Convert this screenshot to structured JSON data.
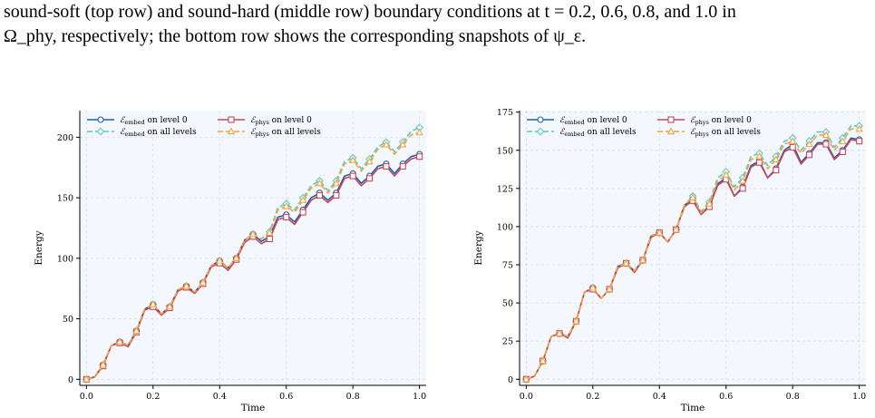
{
  "caption": {
    "line1": "sound-soft (top row) and sound-hard (middle row) boundary conditions at t = 0.2, 0.6, 0.8, and 1.0 in",
    "line2": "Ω_phy, respectively; the bottom row shows the corresponding snapshots of ψ_ε."
  },
  "colors": {
    "embed_level0": "#1f5fa6",
    "embed_all": "#5cc8c0",
    "phys_level0": "#c8465a",
    "phys_all": "#f2a443",
    "panel_bg": "#f4f7fc"
  },
  "chart_data": [
    {
      "type": "line",
      "xlabel": "Time",
      "ylabel": "Energy",
      "xlim": [
        -0.02,
        1.02
      ],
      "ylim": [
        -5,
        222
      ],
      "xticks": [
        "0.0",
        "0.2",
        "0.4",
        "0.6",
        "0.8",
        "1.0"
      ],
      "yticks": [
        "0",
        "50",
        "100",
        "150",
        "200"
      ],
      "grid": true,
      "legend": "top-left",
      "series": [
        {
          "name": "E_embed on level 0",
          "legend_main": "ℰ",
          "legend_sub": "embed",
          "legend_rest": " on level 0",
          "color_key": "embed_level0",
          "marker": "circle",
          "dash": "solid",
          "x": [
            0.0,
            0.025,
            0.05,
            0.075,
            0.1,
            0.125,
            0.15,
            0.175,
            0.2,
            0.225,
            0.25,
            0.275,
            0.3,
            0.325,
            0.35,
            0.375,
            0.4,
            0.425,
            0.45,
            0.475,
            0.5,
            0.525,
            0.55,
            0.575,
            0.6,
            0.625,
            0.65,
            0.675,
            0.7,
            0.725,
            0.75,
            0.775,
            0.8,
            0.825,
            0.85,
            0.875,
            0.9,
            0.925,
            0.95,
            0.975,
            1.0
          ],
          "y": [
            0,
            2,
            12,
            28,
            31,
            28,
            40,
            58,
            62,
            54,
            60,
            74,
            77,
            72,
            80,
            94,
            98,
            92,
            100,
            115,
            120,
            114,
            118,
            134,
            136,
            130,
            140,
            150,
            154,
            148,
            154,
            168,
            170,
            162,
            168,
            176,
            178,
            170,
            178,
            184,
            186
          ]
        },
        {
          "name": "E_embed on all levels",
          "legend_main": "ℰ",
          "legend_sub": "embed",
          "legend_rest": " on all levels",
          "color_key": "embed_all",
          "marker": "diamond",
          "dash": "dashed",
          "x": [
            0.0,
            0.025,
            0.05,
            0.075,
            0.1,
            0.125,
            0.15,
            0.175,
            0.2,
            0.225,
            0.25,
            0.275,
            0.3,
            0.325,
            0.35,
            0.375,
            0.4,
            0.425,
            0.45,
            0.475,
            0.5,
            0.525,
            0.55,
            0.575,
            0.6,
            0.625,
            0.65,
            0.675,
            0.7,
            0.725,
            0.75,
            0.775,
            0.8,
            0.825,
            0.85,
            0.875,
            0.9,
            0.925,
            0.95,
            0.975,
            1.0
          ],
          "y": [
            0,
            2,
            12,
            28,
            31,
            28,
            40,
            58,
            62,
            54,
            60,
            74,
            77,
            72,
            80,
            94,
            98,
            92,
            100,
            115,
            120,
            116,
            122,
            142,
            145,
            140,
            150,
            160,
            164,
            156,
            164,
            180,
            183,
            174,
            182,
            192,
            196,
            188,
            196,
            205,
            208
          ]
        },
        {
          "name": "E_phys on level 0",
          "legend_main": "ℰ",
          "legend_sub": "phys",
          "legend_rest": " on level 0",
          "color_key": "phys_level0",
          "marker": "square",
          "dash": "solid",
          "x": [
            0.0,
            0.025,
            0.05,
            0.075,
            0.1,
            0.125,
            0.15,
            0.175,
            0.2,
            0.225,
            0.25,
            0.275,
            0.3,
            0.325,
            0.35,
            0.375,
            0.4,
            0.425,
            0.45,
            0.475,
            0.5,
            0.525,
            0.55,
            0.575,
            0.6,
            0.625,
            0.65,
            0.675,
            0.7,
            0.725,
            0.75,
            0.775,
            0.8,
            0.825,
            0.85,
            0.875,
            0.9,
            0.925,
            0.95,
            0.975,
            1.0
          ],
          "y": [
            0,
            2,
            11,
            28,
            30,
            27,
            39,
            57,
            60,
            53,
            59,
            73,
            76,
            71,
            79,
            93,
            96,
            90,
            99,
            113,
            118,
            112,
            116,
            132,
            134,
            128,
            138,
            148,
            152,
            146,
            152,
            166,
            168,
            160,
            166,
            174,
            176,
            168,
            176,
            182,
            184
          ]
        },
        {
          "name": "E_phys on all levels",
          "legend_main": "ℰ",
          "legend_sub": "phys",
          "legend_rest": " on all levels",
          "color_key": "phys_all",
          "marker": "triangle",
          "dash": "dashed",
          "x": [
            0.0,
            0.025,
            0.05,
            0.075,
            0.1,
            0.125,
            0.15,
            0.175,
            0.2,
            0.225,
            0.25,
            0.275,
            0.3,
            0.325,
            0.35,
            0.375,
            0.4,
            0.425,
            0.45,
            0.475,
            0.5,
            0.525,
            0.55,
            0.575,
            0.6,
            0.625,
            0.65,
            0.675,
            0.7,
            0.725,
            0.75,
            0.775,
            0.8,
            0.825,
            0.85,
            0.875,
            0.9,
            0.925,
            0.95,
            0.975,
            1.0
          ],
          "y": [
            0,
            2,
            12,
            28,
            31,
            28,
            40,
            58,
            62,
            54,
            60,
            74,
            77,
            72,
            80,
            94,
            98,
            92,
            100,
            115,
            120,
            116,
            121,
            140,
            143,
            138,
            148,
            158,
            162,
            154,
            162,
            178,
            181,
            172,
            180,
            190,
            194,
            186,
            194,
            202,
            204
          ]
        }
      ]
    },
    {
      "type": "line",
      "xlabel": "Time",
      "ylabel": "Energy",
      "xlim": [
        -0.02,
        1.02
      ],
      "ylim": [
        -4,
        176
      ],
      "xticks": [
        "0.0",
        "0.2",
        "0.4",
        "0.6",
        "0.8",
        "1.0"
      ],
      "yticks": [
        "0",
        "25",
        "50",
        "75",
        "100",
        "125",
        "150",
        "175"
      ],
      "grid": true,
      "legend": "top-left",
      "series": [
        {
          "name": "E_embed on level 0",
          "legend_main": "ℰ",
          "legend_sub": "embed",
          "legend_rest": " on level 0",
          "color_key": "embed_level0",
          "marker": "circle",
          "dash": "solid",
          "x": [
            0.0,
            0.025,
            0.05,
            0.075,
            0.1,
            0.125,
            0.15,
            0.175,
            0.2,
            0.225,
            0.25,
            0.275,
            0.3,
            0.325,
            0.35,
            0.375,
            0.4,
            0.425,
            0.45,
            0.475,
            0.5,
            0.525,
            0.55,
            0.575,
            0.6,
            0.625,
            0.65,
            0.675,
            0.7,
            0.725,
            0.75,
            0.775,
            0.8,
            0.825,
            0.85,
            0.875,
            0.9,
            0.925,
            0.95,
            0.975,
            1.0
          ],
          "y": [
            0,
            2,
            12,
            28,
            30,
            28,
            38,
            57,
            60,
            53,
            59,
            74,
            76,
            71,
            78,
            94,
            96,
            90,
            98,
            114,
            118,
            108,
            114,
            128,
            132,
            120,
            126,
            140,
            143,
            132,
            138,
            150,
            154,
            142,
            148,
            155,
            155,
            145,
            150,
            158,
            157
          ]
        },
        {
          "name": "E_embed on all levels",
          "legend_main": "ℰ",
          "legend_sub": "embed",
          "legend_rest": " on all levels",
          "color_key": "embed_all",
          "marker": "diamond",
          "dash": "dashed",
          "x": [
            0.0,
            0.025,
            0.05,
            0.075,
            0.1,
            0.125,
            0.15,
            0.175,
            0.2,
            0.225,
            0.25,
            0.275,
            0.3,
            0.325,
            0.35,
            0.375,
            0.4,
            0.425,
            0.45,
            0.475,
            0.5,
            0.525,
            0.55,
            0.575,
            0.6,
            0.625,
            0.65,
            0.675,
            0.7,
            0.725,
            0.75,
            0.775,
            0.8,
            0.825,
            0.85,
            0.875,
            0.9,
            0.925,
            0.95,
            0.975,
            1.0
          ],
          "y": [
            0,
            2,
            12,
            28,
            30,
            28,
            38,
            57,
            60,
            53,
            59,
            74,
            76,
            71,
            78,
            94,
            96,
            90,
            98,
            114,
            120,
            110,
            116,
            132,
            136,
            126,
            132,
            146,
            148,
            140,
            146,
            156,
            158,
            150,
            156,
            162,
            162,
            152,
            158,
            166,
            166
          ]
        },
        {
          "name": "E_phys on level 0",
          "legend_main": "ℰ",
          "legend_sub": "phys",
          "legend_rest": " on level 0",
          "color_key": "phys_level0",
          "marker": "square",
          "dash": "solid",
          "x": [
            0.0,
            0.025,
            0.05,
            0.075,
            0.1,
            0.125,
            0.15,
            0.175,
            0.2,
            0.225,
            0.25,
            0.275,
            0.3,
            0.325,
            0.35,
            0.375,
            0.4,
            0.425,
            0.45,
            0.475,
            0.5,
            0.525,
            0.55,
            0.575,
            0.6,
            0.625,
            0.65,
            0.675,
            0.7,
            0.725,
            0.75,
            0.775,
            0.8,
            0.825,
            0.85,
            0.875,
            0.9,
            0.925,
            0.95,
            0.975,
            1.0
          ],
          "y": [
            0,
            2,
            12,
            28,
            30,
            27,
            38,
            57,
            59,
            53,
            59,
            73,
            76,
            70,
            78,
            93,
            96,
            90,
            98,
            113,
            117,
            108,
            113,
            127,
            131,
            120,
            125,
            139,
            142,
            132,
            137,
            149,
            152,
            141,
            147,
            154,
            154,
            144,
            149,
            157,
            156
          ]
        },
        {
          "name": "E_phys on all levels",
          "legend_main": "ℰ",
          "legend_sub": "phys",
          "legend_rest": " on all levels",
          "color_key": "phys_all",
          "marker": "triangle",
          "dash": "dashed",
          "x": [
            0.0,
            0.025,
            0.05,
            0.075,
            0.1,
            0.125,
            0.15,
            0.175,
            0.2,
            0.225,
            0.25,
            0.275,
            0.3,
            0.325,
            0.35,
            0.375,
            0.4,
            0.425,
            0.45,
            0.475,
            0.5,
            0.525,
            0.55,
            0.575,
            0.6,
            0.625,
            0.65,
            0.675,
            0.7,
            0.725,
            0.75,
            0.775,
            0.8,
            0.825,
            0.85,
            0.875,
            0.9,
            0.925,
            0.95,
            0.975,
            1.0
          ],
          "y": [
            0,
            2,
            12,
            28,
            30,
            28,
            38,
            57,
            60,
            53,
            59,
            74,
            76,
            71,
            78,
            94,
            96,
            90,
            98,
            114,
            119,
            109,
            115,
            130,
            134,
            124,
            130,
            144,
            146,
            138,
            144,
            154,
            156,
            148,
            154,
            160,
            160,
            150,
            156,
            164,
            164
          ]
        }
      ]
    }
  ]
}
